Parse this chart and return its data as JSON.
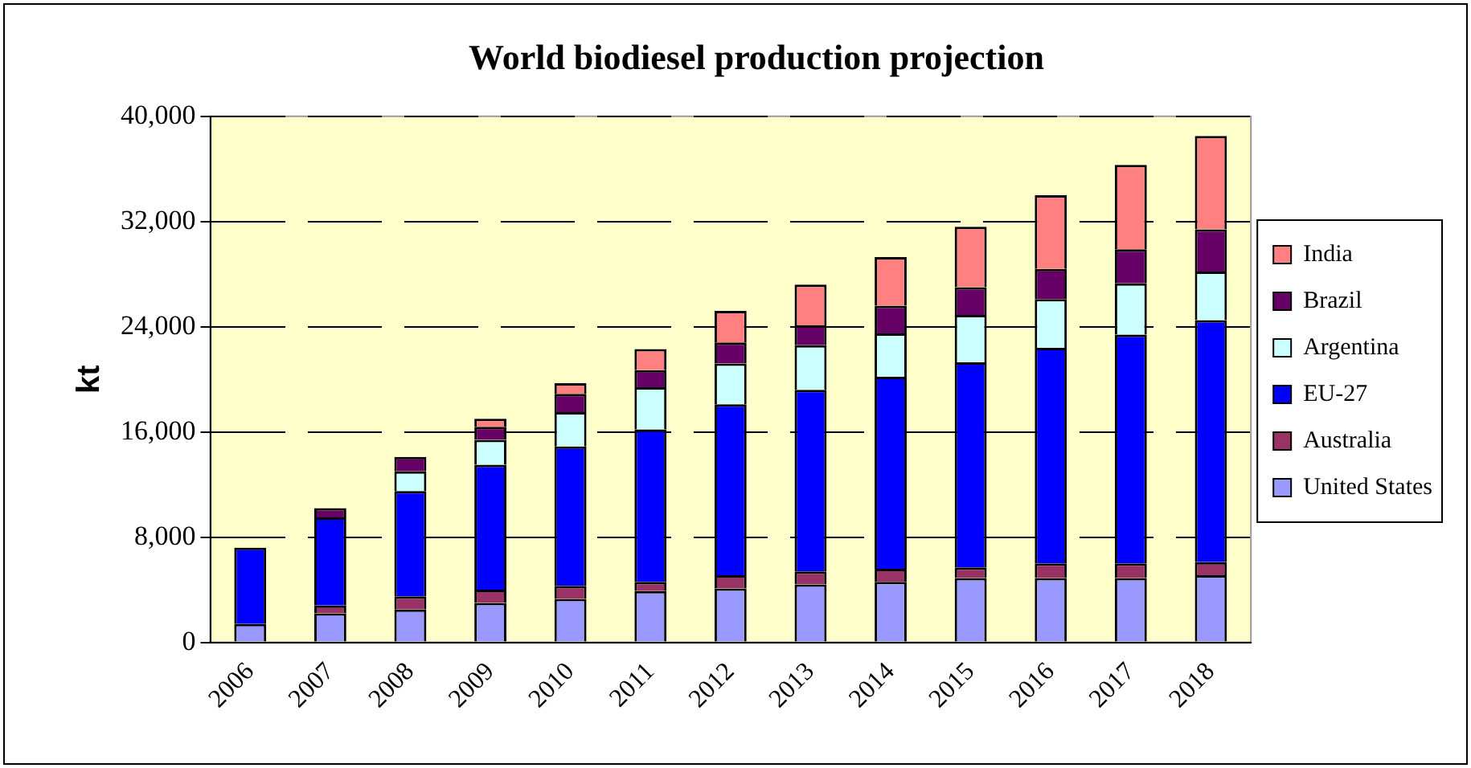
{
  "chart_data": {
    "type": "bar",
    "title": "World biodiesel production projection",
    "ylabel": "kt",
    "categories": [
      "2006",
      "2007",
      "2008",
      "2009",
      "2010",
      "2011",
      "2012",
      "2013",
      "2014",
      "2015",
      "2016",
      "2017",
      "2018"
    ],
    "stacked": true,
    "ylim": [
      0,
      40000
    ],
    "yticks": [
      0,
      {
        "value": 8000,
        "label": "8,000"
      },
      {
        "value": 16000,
        "label": "16,000"
      },
      {
        "value": 24000,
        "label": "24,000"
      },
      {
        "value": 32000,
        "label": "32,000"
      },
      {
        "value": 40000,
        "label": "40,000"
      }
    ],
    "grid": "y",
    "legend": "right",
    "series": [
      {
        "name": "United States",
        "color": "#9999ff",
        "values": [
          1400,
          2200,
          2500,
          3000,
          3300,
          3900,
          4100,
          4400,
          4600,
          4900,
          4900,
          4900,
          5100
        ]
      },
      {
        "name": "Australia",
        "color": "#993366",
        "values": [
          0,
          600,
          1000,
          1000,
          1000,
          700,
          1000,
          1000,
          1000,
          800,
          1100,
          1100,
          1000
        ]
      },
      {
        "name": "EU-27",
        "color": "#0000ff",
        "values": [
          5800,
          6700,
          8000,
          9500,
          10600,
          11600,
          13000,
          13800,
          14600,
          15600,
          16400,
          17400,
          18400
        ]
      },
      {
        "name": "Argentina",
        "color": "#ccffff",
        "values": [
          0,
          0,
          1500,
          1900,
          2600,
          3200,
          3100,
          3400,
          3300,
          3600,
          3700,
          3900,
          3700
        ]
      },
      {
        "name": "Brazil",
        "color": "#660066",
        "values": [
          0,
          700,
          1100,
          1000,
          1400,
          1300,
          1600,
          1500,
          2100,
          2100,
          2300,
          2600,
          3200
        ]
      },
      {
        "name": "India",
        "color": "#ff8080",
        "values": [
          0,
          0,
          0,
          600,
          800,
          1600,
          2400,
          3100,
          3700,
          4600,
          5600,
          6400,
          7100
        ]
      }
    ]
  }
}
